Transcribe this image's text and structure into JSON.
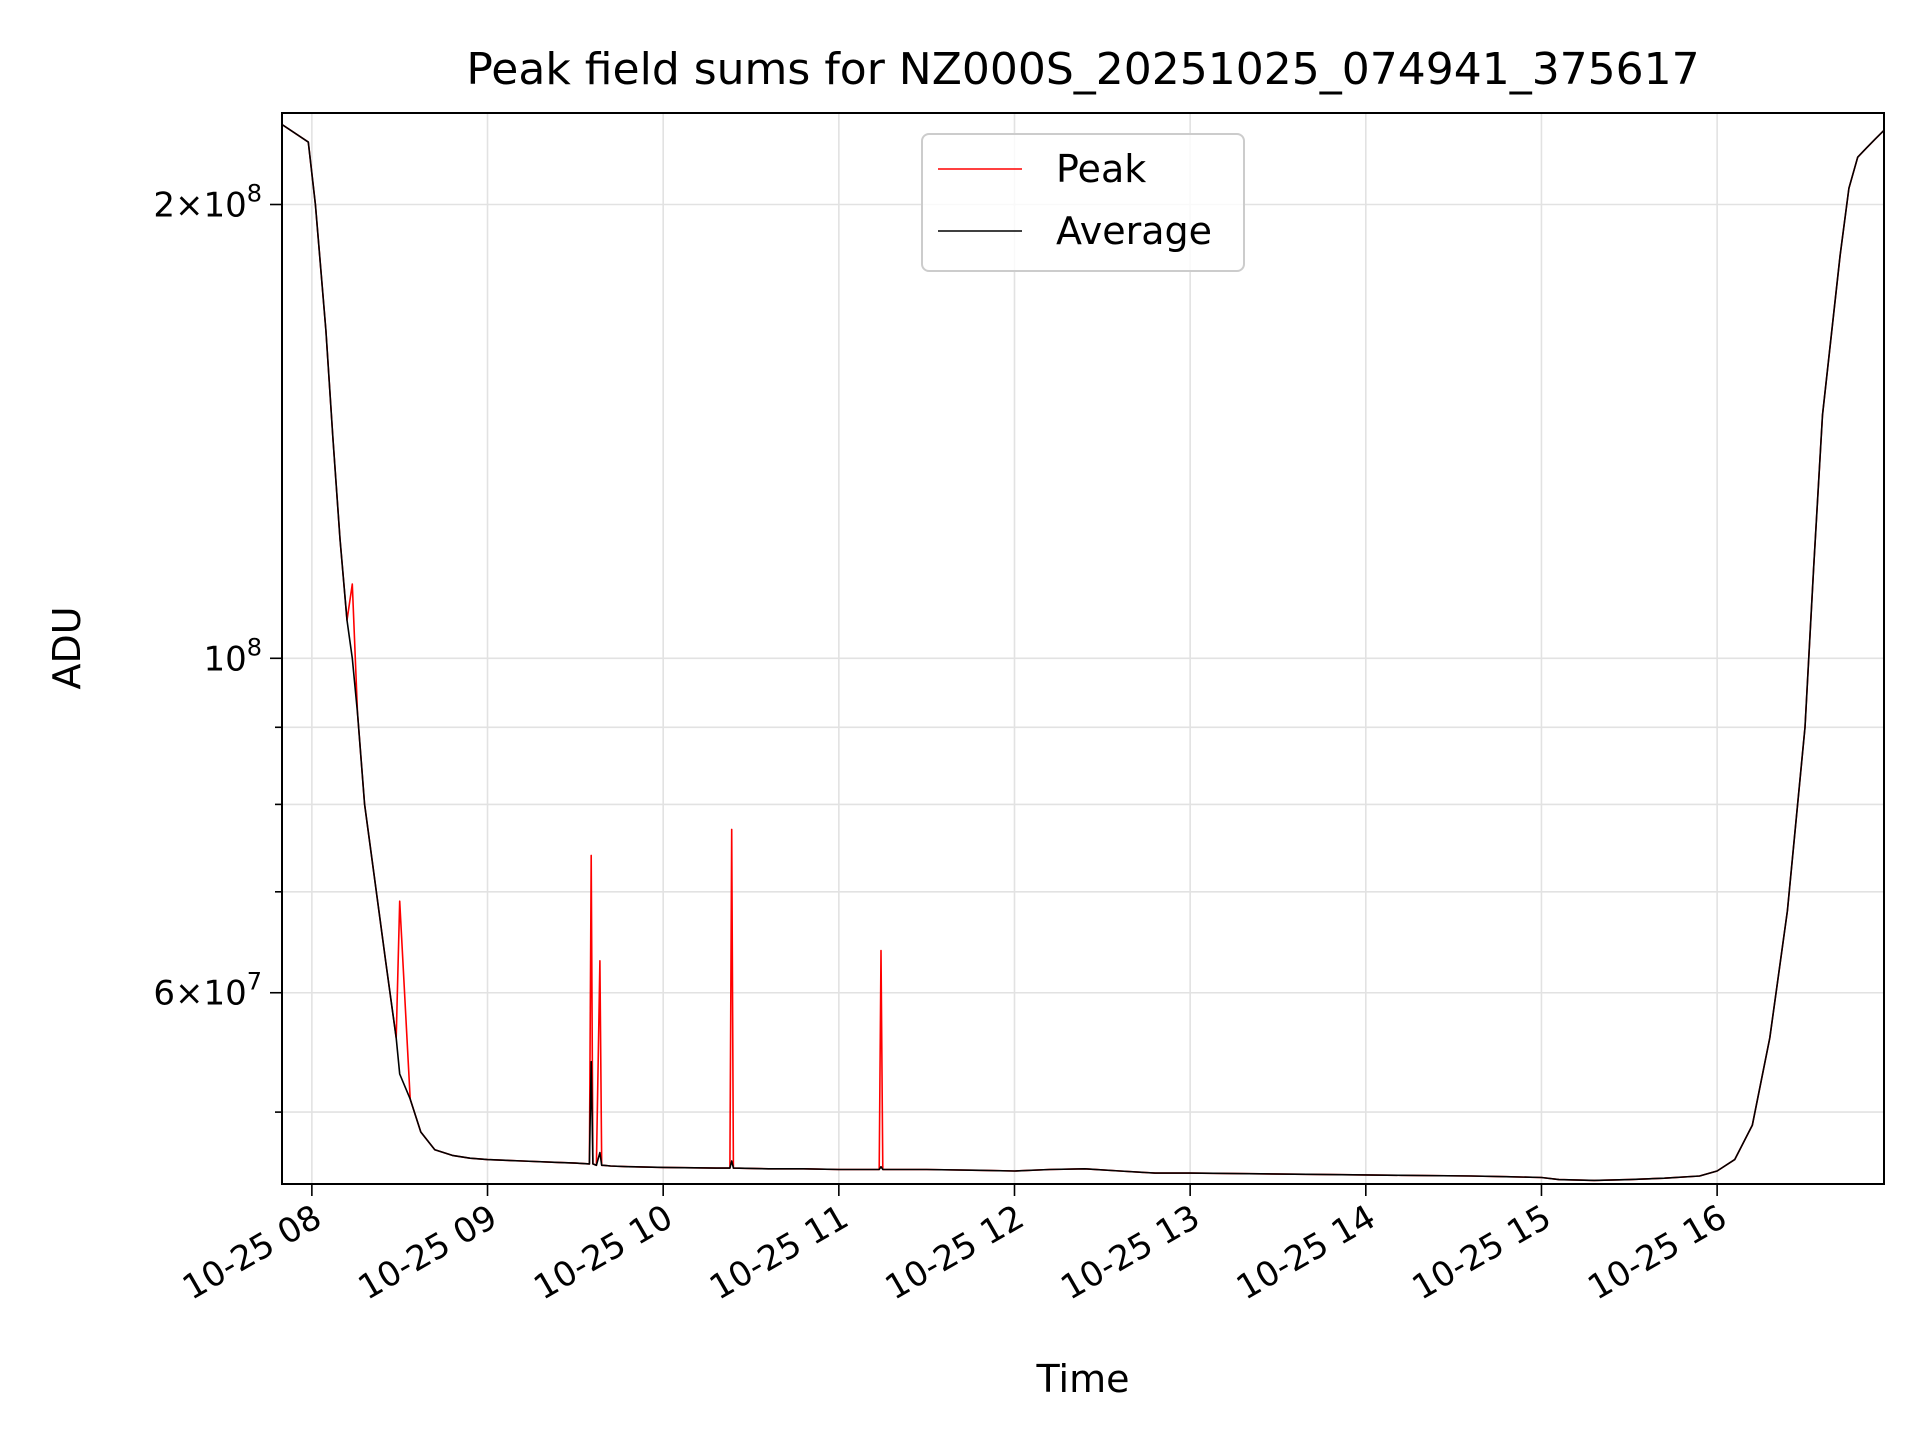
{
  "chart_data": {
    "type": "line",
    "title": "Peak field sums for NZ000S_20251025_074941_375617",
    "xlabel": "Time",
    "ylabel": "ADU",
    "x_unit": "hours since 2025-10-25 00:00",
    "xlim": [
      7.83,
      16.95
    ],
    "ylim": [
      44800000,
      230000000
    ],
    "yscale": "log",
    "grid": true,
    "legend_location": "top-center",
    "x_ticks": [
      {
        "value": 8,
        "label": "10-25 08"
      },
      {
        "value": 9,
        "label": "10-25 09"
      },
      {
        "value": 10,
        "label": "10-25 10"
      },
      {
        "value": 11,
        "label": "10-25 11"
      },
      {
        "value": 12,
        "label": "10-25 12"
      },
      {
        "value": 13,
        "label": "10-25 13"
      },
      {
        "value": 14,
        "label": "10-25 14"
      },
      {
        "value": 15,
        "label": "10-25 15"
      },
      {
        "value": 16,
        "label": "10-25 16"
      }
    ],
    "y_major_ticks": [
      {
        "value": 60000000,
        "mantissa": "6",
        "exponent": "7"
      },
      {
        "value": 100000000,
        "mantissa": "",
        "exponent": "8"
      },
      {
        "value": 200000000,
        "mantissa": "2",
        "exponent": "8"
      }
    ],
    "y_minor_ticks": [
      50000000,
      70000000,
      80000000,
      90000000,
      300000000
    ],
    "series": [
      {
        "name": "Peak",
        "color": "#ff0000",
        "x": [
          7.83,
          7.98,
          8.02,
          8.08,
          8.12,
          8.16,
          8.2,
          8.23,
          8.26,
          8.3,
          8.36,
          8.42,
          8.48,
          8.5,
          8.56,
          8.62,
          8.7,
          8.8,
          8.9,
          9.0,
          9.2,
          9.4,
          9.5,
          9.58,
          9.59,
          9.6,
          9.61,
          9.62,
          9.64,
          9.65,
          9.66,
          9.7,
          9.8,
          10.0,
          10.3,
          10.38,
          10.39,
          10.4,
          10.6,
          10.8,
          11.0,
          11.2,
          11.23,
          11.24,
          11.25,
          11.5,
          11.8,
          12.0,
          12.2,
          12.4,
          12.6,
          12.8,
          13.0,
          13.4,
          13.8,
          14.2,
          14.6,
          14.8,
          15.0,
          15.1,
          15.3,
          15.5,
          15.7,
          15.9,
          16.0,
          16.1,
          16.2,
          16.3,
          16.4,
          16.5,
          16.55,
          16.6,
          16.7,
          16.75,
          16.8,
          16.85,
          16.9,
          16.95
        ],
        "y": [
          226000000,
          220000000,
          200000000,
          165000000,
          140000000,
          120000000,
          106000000,
          112000000,
          92000000,
          80000000,
          71000000,
          63000000,
          56000000,
          69000000,
          51000000,
          48500000,
          47200000,
          46800000,
          46600000,
          46500000,
          46400000,
          46300000,
          46250000,
          46200000,
          74000000,
          46200000,
          46150000,
          46100000,
          63000000,
          46100000,
          46100000,
          46050000,
          46000000,
          45950000,
          45900000,
          45900000,
          77000000,
          45900000,
          45850000,
          45850000,
          45800000,
          45800000,
          45800000,
          64000000,
          45800000,
          45800000,
          45750000,
          45700000,
          45800000,
          45850000,
          45700000,
          45550000,
          45550000,
          45500000,
          45450000,
          45400000,
          45350000,
          45300000,
          45250000,
          45100000,
          45050000,
          45100000,
          45200000,
          45350000,
          45700000,
          46500000,
          49000000,
          56000000,
          68000000,
          90000000,
          115000000,
          145000000,
          185000000,
          205000000,
          215000000,
          218000000,
          221000000,
          224000000
        ]
      },
      {
        "name": "Average",
        "color": "#000000",
        "x": [
          7.83,
          7.98,
          8.02,
          8.08,
          8.12,
          8.16,
          8.2,
          8.23,
          8.26,
          8.3,
          8.36,
          8.42,
          8.48,
          8.5,
          8.56,
          8.62,
          8.7,
          8.8,
          8.9,
          9.0,
          9.2,
          9.4,
          9.5,
          9.58,
          9.59,
          9.6,
          9.61,
          9.62,
          9.64,
          9.65,
          9.66,
          9.7,
          9.8,
          10.0,
          10.3,
          10.38,
          10.39,
          10.4,
          10.6,
          10.8,
          11.0,
          11.2,
          11.23,
          11.24,
          11.25,
          11.5,
          11.8,
          12.0,
          12.2,
          12.4,
          12.6,
          12.8,
          13.0,
          13.4,
          13.8,
          14.2,
          14.6,
          14.8,
          15.0,
          15.1,
          15.3,
          15.5,
          15.7,
          15.9,
          16.0,
          16.1,
          16.2,
          16.3,
          16.4,
          16.5,
          16.55,
          16.6,
          16.7,
          16.75,
          16.8,
          16.85,
          16.9,
          16.95
        ],
        "y": [
          226000000,
          220000000,
          200000000,
          165000000,
          140000000,
          120000000,
          106000000,
          100000000,
          92000000,
          80000000,
          71000000,
          63000000,
          56000000,
          53000000,
          51000000,
          48500000,
          47200000,
          46800000,
          46600000,
          46500000,
          46400000,
          46300000,
          46250000,
          46200000,
          54000000,
          46200000,
          46150000,
          46100000,
          47000000,
          46100000,
          46100000,
          46050000,
          46000000,
          45950000,
          45900000,
          45900000,
          46400000,
          45900000,
          45850000,
          45850000,
          45800000,
          45800000,
          45800000,
          46000000,
          45800000,
          45800000,
          45750000,
          45700000,
          45800000,
          45850000,
          45700000,
          45550000,
          45550000,
          45500000,
          45450000,
          45400000,
          45350000,
          45300000,
          45250000,
          45100000,
          45050000,
          45100000,
          45200000,
          45350000,
          45700000,
          46500000,
          49000000,
          56000000,
          68000000,
          90000000,
          115000000,
          145000000,
          185000000,
          205000000,
          215000000,
          218000000,
          221000000,
          224000000
        ]
      }
    ],
    "legend": [
      {
        "label": "Peak",
        "color": "#ff0000"
      },
      {
        "label": "Average",
        "color": "#000000"
      }
    ]
  }
}
